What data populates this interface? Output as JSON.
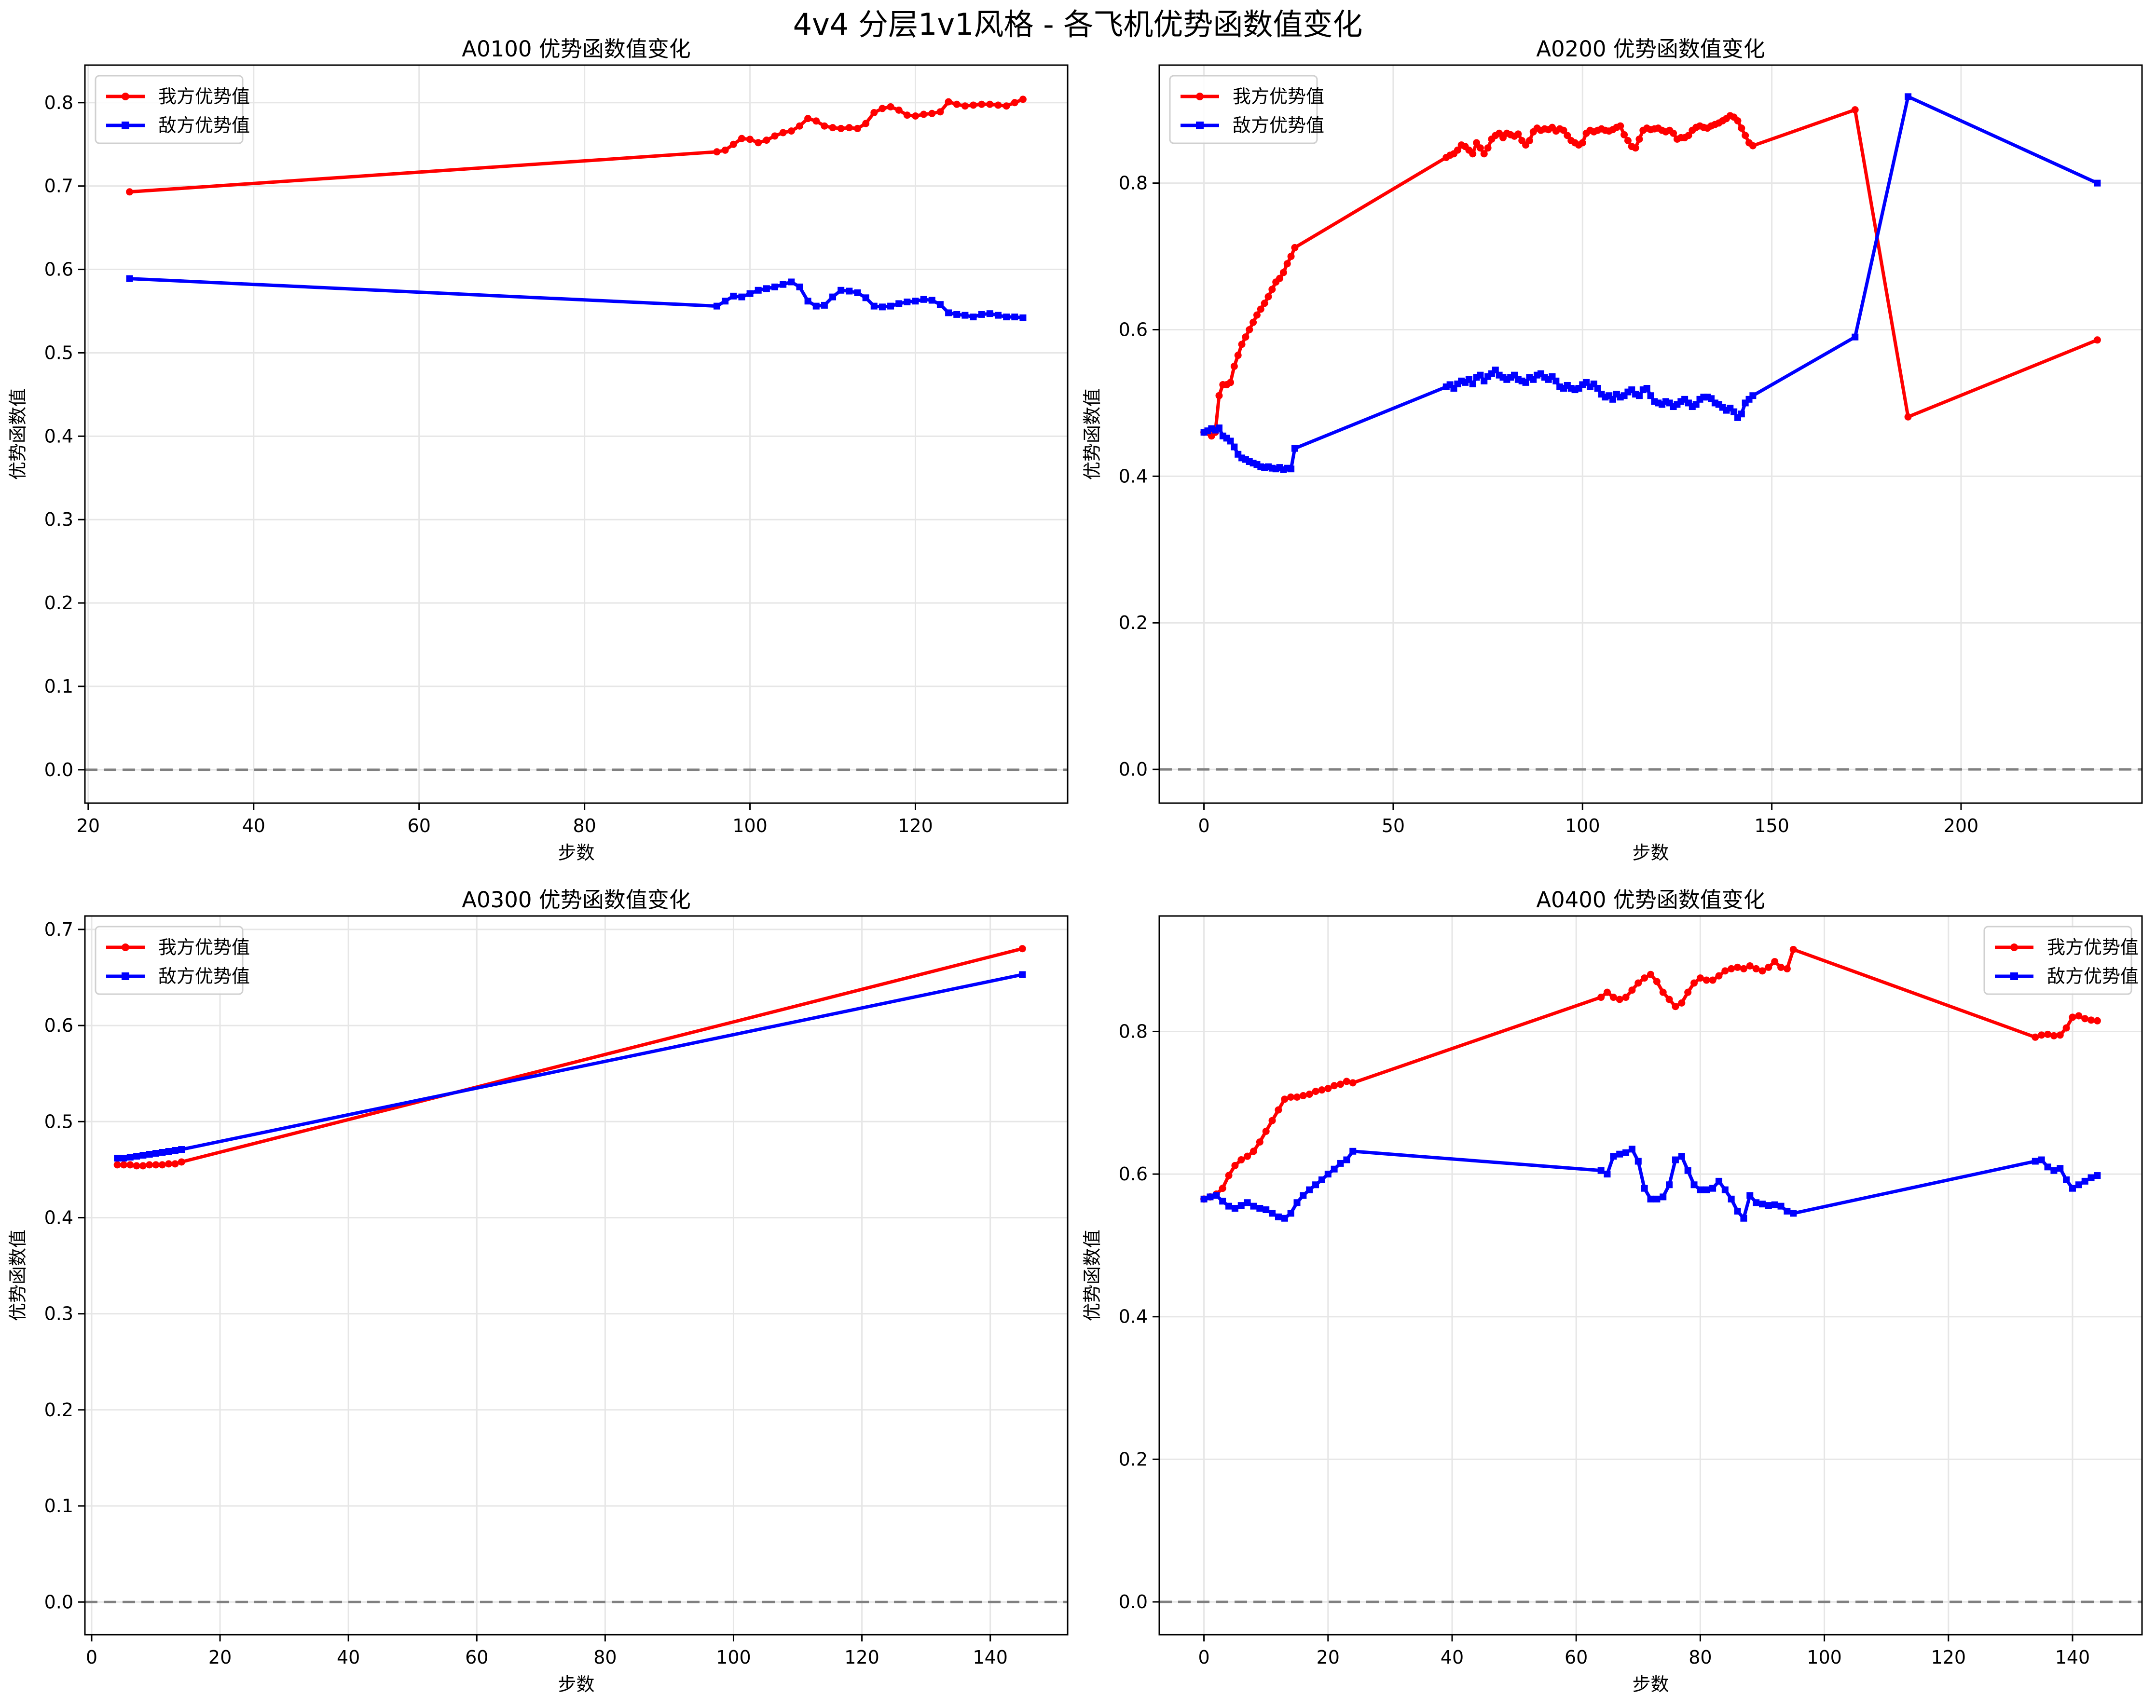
{
  "figure_title": "4v4 分层1v1风格 - 各飞机优势函数值变化",
  "colors": {
    "ours": "#ff0000",
    "enemy": "#0000ff",
    "grid": "#e6e6e6",
    "zero_line": "#808080",
    "axis": "#000000"
  },
  "chart_data": [
    {
      "type": "line",
      "title": "A0100 优势函数值变化",
      "xlabel": "步数",
      "ylabel": "优势函数值",
      "xlim": [
        19.6,
        138.4
      ],
      "ylim": [
        -0.04,
        0.845
      ],
      "xticks": [
        20,
        40,
        60,
        80,
        100,
        120
      ],
      "yticks": [
        0.0,
        0.1,
        0.2,
        0.3,
        0.4,
        0.5,
        0.6,
        0.7,
        0.8
      ],
      "ytick_decimals": 1,
      "legend_position": "top-left",
      "series": [
        {
          "name": "我方优势值",
          "marker": "circle",
          "color": "#ff0000",
          "x": [
            25,
            96,
            97,
            98,
            99,
            100,
            101,
            102,
            103,
            104,
            105,
            106,
            107,
            108,
            109,
            110,
            111,
            112,
            113,
            114,
            115,
            116,
            117,
            118,
            119,
            120,
            121,
            122,
            123,
            124,
            125,
            126,
            127,
            128,
            129,
            130,
            131,
            132,
            133
          ],
          "values": [
            0.693,
            0.741,
            0.743,
            0.75,
            0.757,
            0.756,
            0.752,
            0.755,
            0.76,
            0.764,
            0.766,
            0.772,
            0.781,
            0.778,
            0.772,
            0.77,
            0.769,
            0.77,
            0.769,
            0.775,
            0.788,
            0.793,
            0.795,
            0.791,
            0.785,
            0.784,
            0.786,
            0.787,
            0.789,
            0.801,
            0.798,
            0.796,
            0.797,
            0.798,
            0.798,
            0.797,
            0.796,
            0.8,
            0.804
          ]
        },
        {
          "name": "敌方优势值",
          "marker": "square",
          "color": "#0000ff",
          "x": [
            25,
            96,
            97,
            98,
            99,
            100,
            101,
            102,
            103,
            104,
            105,
            106,
            107,
            108,
            109,
            110,
            111,
            112,
            113,
            114,
            115,
            116,
            117,
            118,
            119,
            120,
            121,
            122,
            123,
            124,
            125,
            126,
            127,
            128,
            129,
            130,
            131,
            132,
            133
          ],
          "values": [
            0.589,
            0.556,
            0.562,
            0.568,
            0.567,
            0.571,
            0.575,
            0.577,
            0.579,
            0.582,
            0.585,
            0.579,
            0.562,
            0.556,
            0.557,
            0.567,
            0.575,
            0.574,
            0.572,
            0.566,
            0.556,
            0.555,
            0.556,
            0.559,
            0.561,
            0.562,
            0.564,
            0.563,
            0.558,
            0.548,
            0.546,
            0.545,
            0.543,
            0.546,
            0.547,
            0.545,
            0.543,
            0.543,
            0.542
          ]
        }
      ]
    },
    {
      "type": "line",
      "title": "A0200 优势函数值变化",
      "xlabel": "步数",
      "ylabel": "优势函数值",
      "xlim": [
        -11.8,
        247.8
      ],
      "ylim": [
        -0.046,
        0.961
      ],
      "xticks": [
        0,
        50,
        100,
        150,
        200
      ],
      "yticks": [
        0.0,
        0.2,
        0.4,
        0.6,
        0.8
      ],
      "ytick_decimals": 1,
      "legend_position": "top-left",
      "series": [
        {
          "name": "我方优势值",
          "marker": "circle",
          "color": "#ff0000",
          "x": [
            0,
            2,
            3,
            4,
            5,
            6,
            7,
            8,
            9,
            10,
            11,
            12,
            13,
            14,
            15,
            16,
            17,
            18,
            19,
            20,
            21,
            22,
            23,
            24,
            64,
            65,
            66,
            67,
            68,
            69,
            70,
            71,
            72,
            73,
            74,
            75,
            76,
            77,
            78,
            79,
            80,
            81,
            82,
            83,
            84,
            85,
            86,
            87,
            88,
            89,
            90,
            91,
            92,
            93,
            94,
            95,
            96,
            97,
            98,
            99,
            100,
            101,
            102,
            103,
            104,
            105,
            106,
            107,
            108,
            109,
            110,
            111,
            112,
            113,
            114,
            115,
            116,
            117,
            118,
            119,
            120,
            121,
            122,
            123,
            124,
            125,
            126,
            127,
            128,
            129,
            130,
            131,
            132,
            133,
            134,
            135,
            136,
            137,
            138,
            139,
            140,
            141,
            142,
            143,
            144,
            145,
            172,
            186,
            236
          ],
          "values": [
            0.46,
            0.455,
            0.46,
            0.51,
            0.525,
            0.525,
            0.528,
            0.55,
            0.565,
            0.58,
            0.59,
            0.6,
            0.61,
            0.62,
            0.628,
            0.636,
            0.645,
            0.655,
            0.665,
            0.67,
            0.678,
            0.69,
            0.7,
            0.712,
            0.835,
            0.838,
            0.84,
            0.845,
            0.852,
            0.85,
            0.845,
            0.84,
            0.855,
            0.848,
            0.84,
            0.848,
            0.86,
            0.865,
            0.868,
            0.862,
            0.868,
            0.866,
            0.864,
            0.867,
            0.858,
            0.852,
            0.858,
            0.87,
            0.875,
            0.872,
            0.874,
            0.873,
            0.876,
            0.871,
            0.874,
            0.872,
            0.865,
            0.858,
            0.855,
            0.852,
            0.855,
            0.868,
            0.872,
            0.87,
            0.872,
            0.874,
            0.872,
            0.871,
            0.873,
            0.876,
            0.878,
            0.866,
            0.858,
            0.85,
            0.848,
            0.86,
            0.872,
            0.875,
            0.873,
            0.874,
            0.875,
            0.872,
            0.87,
            0.872,
            0.868,
            0.86,
            0.862,
            0.862,
            0.865,
            0.872,
            0.876,
            0.878,
            0.876,
            0.875,
            0.878,
            0.88,
            0.882,
            0.885,
            0.888,
            0.892,
            0.89,
            0.885,
            0.875,
            0.865,
            0.855,
            0.851,
            0.9,
            0.481,
            0.586
          ]
        },
        {
          "name": "敌方优势值",
          "marker": "square",
          "color": "#0000ff",
          "x": [
            0,
            1,
            2,
            3,
            4,
            5,
            6,
            7,
            8,
            9,
            10,
            11,
            12,
            13,
            14,
            15,
            16,
            17,
            18,
            19,
            20,
            21,
            22,
            23,
            24,
            64,
            65,
            66,
            67,
            68,
            69,
            70,
            71,
            72,
            73,
            74,
            75,
            76,
            77,
            78,
            79,
            80,
            81,
            82,
            83,
            84,
            85,
            86,
            87,
            88,
            89,
            90,
            91,
            92,
            93,
            94,
            95,
            96,
            97,
            98,
            99,
            100,
            101,
            102,
            103,
            104,
            105,
            106,
            107,
            108,
            109,
            110,
            111,
            112,
            113,
            114,
            115,
            116,
            117,
            118,
            119,
            120,
            121,
            122,
            123,
            124,
            125,
            126,
            127,
            128,
            129,
            130,
            131,
            132,
            133,
            134,
            135,
            136,
            137,
            138,
            139,
            140,
            141,
            142,
            143,
            144,
            145,
            172,
            186,
            236
          ],
          "values": [
            0.46,
            0.462,
            0.465,
            0.463,
            0.466,
            0.455,
            0.452,
            0.448,
            0.44,
            0.43,
            0.425,
            0.423,
            0.42,
            0.418,
            0.416,
            0.413,
            0.412,
            0.413,
            0.411,
            0.41,
            0.412,
            0.409,
            0.411,
            0.41,
            0.438,
            0.522,
            0.525,
            0.52,
            0.526,
            0.53,
            0.528,
            0.532,
            0.526,
            0.535,
            0.538,
            0.53,
            0.536,
            0.54,
            0.545,
            0.538,
            0.535,
            0.532,
            0.535,
            0.538,
            0.532,
            0.53,
            0.528,
            0.535,
            0.532,
            0.538,
            0.54,
            0.535,
            0.532,
            0.536,
            0.53,
            0.522,
            0.52,
            0.524,
            0.52,
            0.518,
            0.52,
            0.525,
            0.528,
            0.522,
            0.526,
            0.52,
            0.512,
            0.508,
            0.51,
            0.505,
            0.512,
            0.508,
            0.51,
            0.515,
            0.518,
            0.512,
            0.51,
            0.518,
            0.52,
            0.51,
            0.502,
            0.5,
            0.498,
            0.502,
            0.5,
            0.495,
            0.498,
            0.502,
            0.505,
            0.5,
            0.495,
            0.498,
            0.505,
            0.508,
            0.508,
            0.506,
            0.5,
            0.498,
            0.494,
            0.49,
            0.493,
            0.488,
            0.48,
            0.485,
            0.5,
            0.505,
            0.51,
            0.59,
            0.918,
            0.8
          ]
        }
      ]
    },
    {
      "type": "line",
      "title": "A0300 优势函数值变化",
      "xlabel": "步数",
      "ylabel": "优势函数值",
      "xlim": [
        -1.05,
        152.05
      ],
      "ylim": [
        -0.034,
        0.714
      ],
      "xticks": [
        0,
        20,
        40,
        60,
        80,
        100,
        120,
        140
      ],
      "yticks": [
        0.0,
        0.1,
        0.2,
        0.3,
        0.4,
        0.5,
        0.6,
        0.7
      ],
      "ytick_decimals": 1,
      "legend_position": "top-left",
      "series": [
        {
          "name": "我方优势值",
          "marker": "circle",
          "color": "#ff0000",
          "x": [
            4,
            5,
            6,
            7,
            8,
            9,
            10,
            11,
            12,
            13,
            14,
            145
          ],
          "values": [
            0.455,
            0.455,
            0.455,
            0.454,
            0.454,
            0.455,
            0.455,
            0.455,
            0.456,
            0.456,
            0.458,
            0.68
          ]
        },
        {
          "name": "敌方优势值",
          "marker": "square",
          "color": "#0000ff",
          "x": [
            4,
            5,
            6,
            7,
            8,
            9,
            10,
            11,
            12,
            13,
            14,
            145
          ],
          "values": [
            0.462,
            0.462,
            0.463,
            0.464,
            0.465,
            0.466,
            0.467,
            0.468,
            0.469,
            0.47,
            0.471,
            0.653
          ]
        }
      ]
    },
    {
      "type": "line",
      "title": "A0400 优势函数值变化",
      "xlabel": "步数",
      "ylabel": "优势函数值",
      "xlim": [
        -7.2,
        151.2
      ],
      "ylim": [
        -0.046,
        0.962
      ],
      "xticks": [
        0,
        20,
        40,
        60,
        80,
        100,
        120,
        140
      ],
      "yticks": [
        0.0,
        0.2,
        0.4,
        0.6,
        0.8
      ],
      "ytick_decimals": 1,
      "legend_position": "top-right",
      "series": [
        {
          "name": "我方优势值",
          "marker": "circle",
          "color": "#ff0000",
          "x": [
            0,
            1,
            2,
            3,
            4,
            5,
            6,
            7,
            8,
            9,
            10,
            11,
            12,
            13,
            14,
            15,
            16,
            17,
            18,
            19,
            20,
            21,
            22,
            23,
            24,
            64,
            65,
            66,
            67,
            68,
            69,
            70,
            71,
            72,
            73,
            74,
            75,
            76,
            77,
            78,
            79,
            80,
            81,
            82,
            83,
            84,
            85,
            86,
            87,
            88,
            89,
            90,
            91,
            92,
            93,
            94,
            95,
            134,
            135,
            136,
            137,
            138,
            139,
            140,
            141,
            142,
            143,
            144
          ],
          "values": [
            0.565,
            0.568,
            0.572,
            0.58,
            0.598,
            0.612,
            0.62,
            0.625,
            0.632,
            0.645,
            0.66,
            0.675,
            0.69,
            0.705,
            0.708,
            0.708,
            0.71,
            0.712,
            0.716,
            0.718,
            0.72,
            0.724,
            0.726,
            0.73,
            0.728,
            0.848,
            0.855,
            0.848,
            0.845,
            0.848,
            0.858,
            0.868,
            0.875,
            0.88,
            0.87,
            0.855,
            0.845,
            0.835,
            0.84,
            0.855,
            0.868,
            0.875,
            0.872,
            0.872,
            0.878,
            0.885,
            0.888,
            0.89,
            0.888,
            0.892,
            0.888,
            0.885,
            0.89,
            0.898,
            0.89,
            0.888,
            0.915,
            0.792,
            0.795,
            0.796,
            0.794,
            0.795,
            0.805,
            0.82,
            0.822,
            0.818,
            0.816,
            0.815
          ]
        },
        {
          "name": "敌方优势值",
          "marker": "square",
          "color": "#0000ff",
          "x": [
            0,
            1,
            2,
            3,
            4,
            5,
            6,
            7,
            8,
            9,
            10,
            11,
            12,
            13,
            14,
            15,
            16,
            17,
            18,
            19,
            20,
            21,
            22,
            23,
            24,
            64,
            65,
            66,
            67,
            68,
            69,
            70,
            71,
            72,
            73,
            74,
            75,
            76,
            77,
            78,
            79,
            80,
            81,
            82,
            83,
            84,
            85,
            86,
            87,
            88,
            89,
            90,
            91,
            92,
            93,
            94,
            95,
            134,
            135,
            136,
            137,
            138,
            139,
            140,
            141,
            142,
            143,
            144
          ],
          "values": [
            0.565,
            0.568,
            0.57,
            0.562,
            0.555,
            0.552,
            0.556,
            0.56,
            0.555,
            0.552,
            0.55,
            0.545,
            0.54,
            0.538,
            0.545,
            0.56,
            0.57,
            0.578,
            0.585,
            0.592,
            0.6,
            0.607,
            0.615,
            0.62,
            0.632,
            0.605,
            0.6,
            0.625,
            0.628,
            0.63,
            0.635,
            0.618,
            0.58,
            0.565,
            0.565,
            0.568,
            0.585,
            0.62,
            0.625,
            0.605,
            0.585,
            0.578,
            0.578,
            0.58,
            0.59,
            0.578,
            0.565,
            0.548,
            0.538,
            0.57,
            0.56,
            0.558,
            0.556,
            0.557,
            0.555,
            0.548,
            0.545,
            0.618,
            0.62,
            0.61,
            0.605,
            0.608,
            0.592,
            0.58,
            0.585,
            0.59,
            0.595,
            0.598
          ]
        }
      ]
    }
  ]
}
